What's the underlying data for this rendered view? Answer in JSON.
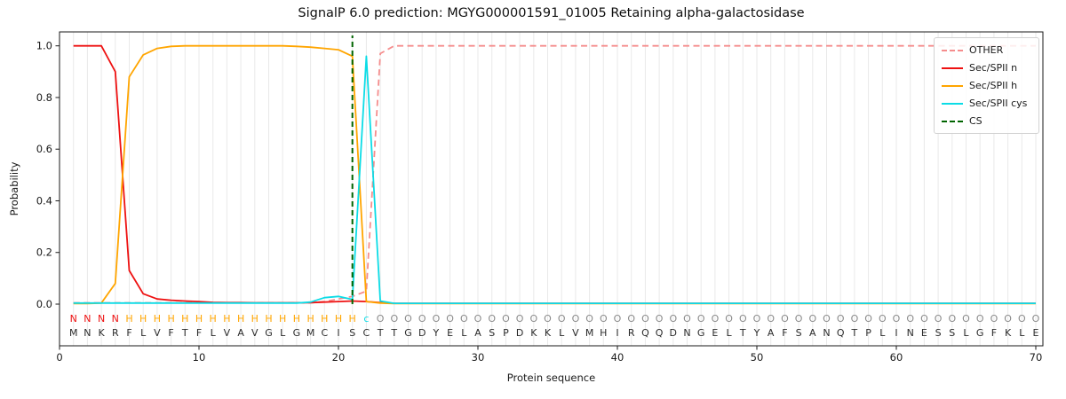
{
  "chart_data": {
    "type": "line",
    "title": "SignalP 6.0 prediction: MGYG000001591_01005 Retaining alpha-galactosidase",
    "xlabel": "Protein sequence",
    "ylabel": "Probability",
    "xlim": [
      0,
      70.5
    ],
    "ylim": [
      -0.16,
      1.05
    ],
    "xticks": [
      0,
      10,
      20,
      30,
      40,
      50,
      60,
      70
    ],
    "ytick_labels": [
      "0.0",
      "0.2",
      "0.4",
      "0.6",
      "0.8",
      "1.0"
    ],
    "grid": "light vertical gridline at every residue position 1-70, no horizontal grid",
    "legend_position": "upper right",
    "x_positions": {
      "start": 1,
      "end": 70
    },
    "sequence": "MNKRFLVFTFLVAVGLGMCISCTTGDYELASPDKKLVMHIRQQDNGELTYAFSANQTPLINESSLGFKLE",
    "region_labels": "NNNNHHHHHHHHHHHHHHHHHcOOOOOOOOOOOOOOOOOOOOOOOOOOOOOOOOOOOOOOOOOOOOOOOO",
    "label_colors": {
      "N": "#ee1111",
      "H": "#ffa500",
      "c": "#0cdce6",
      "O": "#8a8a8a"
    },
    "sequence_color": "#2b2b2b",
    "series": [
      {
        "name": "OTHER",
        "color": "#f58d8d",
        "style": "dashed",
        "values": [
          0.005,
          0.005,
          0.005,
          0.005,
          0.005,
          0.005,
          0.005,
          0.005,
          0.005,
          0.005,
          0.005,
          0.005,
          0.005,
          0.005,
          0.005,
          0.005,
          0.005,
          0.005,
          0.01,
          0.02,
          0.03,
          0.05,
          0.97,
          1,
          1,
          1,
          1,
          1,
          1,
          1,
          1,
          1,
          1,
          1,
          1,
          1,
          1,
          1,
          1,
          1,
          1,
          1,
          1,
          1,
          1,
          1,
          1,
          1,
          1,
          1,
          1,
          1,
          1,
          1,
          1,
          1,
          1,
          1,
          1,
          1,
          1,
          1,
          1,
          1,
          1,
          1,
          1,
          1,
          1,
          1
        ]
      },
      {
        "name": "Sec/SPII n",
        "color": "#ee1111",
        "style": "solid",
        "values": [
          1,
          1,
          1,
          0.9,
          0.13,
          0.04,
          0.02,
          0.015,
          0.012,
          0.01,
          0.007,
          0.006,
          0.006,
          0.005,
          0.005,
          0.005,
          0.005,
          0.006,
          0.008,
          0.01,
          0.012,
          0.01,
          0.006,
          0.003,
          0.003,
          0.003,
          0.003,
          0.003,
          0.003,
          0.003,
          0.003,
          0.003,
          0.003,
          0.003,
          0.003,
          0.003,
          0.003,
          0.003,
          0.003,
          0.003,
          0.003,
          0.003,
          0.003,
          0.003,
          0.003,
          0.003,
          0.003,
          0.003,
          0.003,
          0.003,
          0.003,
          0.003,
          0.003,
          0.003,
          0.003,
          0.003,
          0.003,
          0.003,
          0.003,
          0.003,
          0.003,
          0.003,
          0.003,
          0.003,
          0.003,
          0.003,
          0.003,
          0.003,
          0.003,
          0.003
        ]
      },
      {
        "name": "Sec/SPII h",
        "color": "#ffa500",
        "style": "solid",
        "values": [
          0.002,
          0.002,
          0.004,
          0.08,
          0.88,
          0.965,
          0.99,
          0.998,
          1,
          1,
          1,
          1,
          1,
          1,
          1,
          1,
          0.998,
          0.995,
          0.99,
          0.985,
          0.96,
          0.01,
          0.004,
          0.002,
          0.002,
          0.002,
          0.002,
          0.002,
          0.002,
          0.002,
          0.002,
          0.002,
          0.002,
          0.002,
          0.002,
          0.002,
          0.002,
          0.002,
          0.002,
          0.002,
          0.002,
          0.002,
          0.002,
          0.002,
          0.002,
          0.002,
          0.002,
          0.002,
          0.002,
          0.002,
          0.002,
          0.002,
          0.002,
          0.002,
          0.002,
          0.002,
          0.002,
          0.002,
          0.002,
          0.002,
          0.002,
          0.002,
          0.002,
          0.002,
          0.002,
          0.002,
          0.002,
          0.002,
          0.002,
          0.002
        ]
      },
      {
        "name": "Sec/SPII cys",
        "color": "#0cdce6",
        "style": "solid",
        "values": [
          0.004,
          0.004,
          0.004,
          0.004,
          0.004,
          0.004,
          0.004,
          0.004,
          0.004,
          0.004,
          0.004,
          0.004,
          0.004,
          0.004,
          0.004,
          0.004,
          0.004,
          0.008,
          0.025,
          0.03,
          0.018,
          0.96,
          0.012,
          0.003,
          0.003,
          0.003,
          0.003,
          0.003,
          0.003,
          0.003,
          0.003,
          0.003,
          0.003,
          0.003,
          0.003,
          0.003,
          0.003,
          0.003,
          0.003,
          0.003,
          0.003,
          0.003,
          0.003,
          0.003,
          0.003,
          0.003,
          0.003,
          0.003,
          0.003,
          0.003,
          0.003,
          0.003,
          0.003,
          0.003,
          0.003,
          0.003,
          0.003,
          0.003,
          0.003,
          0.003,
          0.003,
          0.003,
          0.003,
          0.003,
          0.003,
          0.003,
          0.003,
          0.003,
          0.003,
          0.003
        ]
      }
    ],
    "cs_marker": {
      "name": "CS",
      "x": 21,
      "color": "#006400",
      "style": "dashed"
    }
  }
}
